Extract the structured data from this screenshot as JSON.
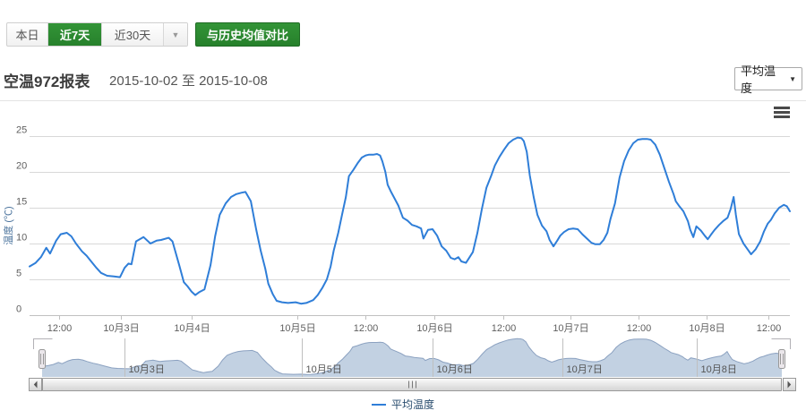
{
  "toolbar": {
    "range_buttons": [
      {
        "label": "本日",
        "selected": false
      },
      {
        "label": "近7天",
        "selected": true
      },
      {
        "label": "近30天",
        "selected": false
      }
    ],
    "compare_button_label": "与历史均值对比"
  },
  "header": {
    "title": "空温972报表",
    "date_range": "2015-10-02 至 2015-10-08",
    "metric_select_value": "平均温度"
  },
  "legend": {
    "items": [
      {
        "label": "平均温度",
        "color": "#2f7ed8"
      }
    ]
  },
  "colors": {
    "accent_green": "#2e8b2e",
    "series_blue": "#2f7ed8",
    "grid": "#d8d8d8",
    "axis_line": "#c0c0c0",
    "axis_label": "#606060",
    "y_title": "#4d759e",
    "navigator_fill": "rgba(69,114,167,0.33)",
    "navigator_line": "#8ba1c0",
    "navigator_grid": "#bfbfbf",
    "outline": "#b2b1b6",
    "legend_text": "#274b6d"
  },
  "chart_data": {
    "type": "line",
    "title": "",
    "ylabel": "温度 (℃)",
    "ylim": [
      0,
      26.5
    ],
    "yticks": [
      0,
      5,
      10,
      15,
      20,
      25
    ],
    "grid": "horizontal",
    "legend_position": "bottom-center",
    "xticks": [
      {
        "label": "12:00",
        "pos": 3.9
      },
      {
        "label": "10月3日",
        "pos": 12.0
      },
      {
        "label": "10月4日",
        "pos": 21.3
      },
      {
        "label": "10月5日",
        "pos": 35.2
      },
      {
        "label": "12:00",
        "pos": 44.2
      },
      {
        "label": "10月6日",
        "pos": 53.2
      },
      {
        "label": "12:00",
        "pos": 62.3
      },
      {
        "label": "10月7日",
        "pos": 71.1
      },
      {
        "label": "12:00",
        "pos": 80.1
      },
      {
        "label": "10月8日",
        "pos": 89.0
      },
      {
        "label": "12:00",
        "pos": 97.2
      }
    ],
    "navigator_ticks": [
      {
        "label": "10月3日",
        "pos": 11.1
      },
      {
        "label": "10月5日",
        "pos": 35.1
      },
      {
        "label": "10月6日",
        "pos": 52.8
      },
      {
        "label": "10月7日",
        "pos": 70.3
      },
      {
        "label": "10月8日",
        "pos": 88.5
      }
    ],
    "series": [
      {
        "name": "平均温度",
        "color": "#2f7ed8",
        "points": [
          [
            0,
            6.8
          ],
          [
            0.8,
            7.3
          ],
          [
            1.5,
            8.1
          ],
          [
            2.2,
            9.4
          ],
          [
            2.7,
            8.6
          ],
          [
            3.5,
            10.4
          ],
          [
            4.1,
            11.3
          ],
          [
            4.9,
            11.5
          ],
          [
            5.5,
            11
          ],
          [
            6.1,
            10
          ],
          [
            6.9,
            8.9
          ],
          [
            7.5,
            8.3
          ],
          [
            8.1,
            7.5
          ],
          [
            8.8,
            6.6
          ],
          [
            9.4,
            5.9
          ],
          [
            10.2,
            5.5
          ],
          [
            11.1,
            5.4
          ],
          [
            11.9,
            5.3
          ],
          [
            12.5,
            6.6
          ],
          [
            13,
            7.2
          ],
          [
            13.4,
            7.1
          ],
          [
            14,
            10.3
          ],
          [
            15,
            10.9
          ],
          [
            15.9,
            10
          ],
          [
            16.7,
            10.4
          ],
          [
            17.3,
            10.5
          ],
          [
            18.3,
            10.8
          ],
          [
            18.8,
            10.3
          ],
          [
            19.7,
            6.9
          ],
          [
            20.3,
            4.6
          ],
          [
            20.8,
            4
          ],
          [
            21.3,
            3.3
          ],
          [
            21.8,
            2.8
          ],
          [
            22.3,
            3.2
          ],
          [
            23,
            3.6
          ],
          [
            23.8,
            7
          ],
          [
            24.4,
            11
          ],
          [
            25,
            14
          ],
          [
            25.8,
            15.6
          ],
          [
            26.5,
            16.5
          ],
          [
            27.2,
            16.9
          ],
          [
            27.9,
            17.1
          ],
          [
            28.4,
            17.2
          ],
          [
            29.1,
            15.9
          ],
          [
            29.8,
            12
          ],
          [
            30.4,
            9
          ],
          [
            31,
            6.5
          ],
          [
            31.4,
            4.4
          ],
          [
            32,
            2.9
          ],
          [
            32.5,
            2
          ],
          [
            33.2,
            1.8
          ],
          [
            34,
            1.7
          ],
          [
            35,
            1.8
          ],
          [
            35.7,
            1.6
          ],
          [
            36.4,
            1.7
          ],
          [
            37.3,
            2.1
          ],
          [
            37.9,
            2.8
          ],
          [
            38.5,
            3.8
          ],
          [
            39.1,
            5
          ],
          [
            39.6,
            6.8
          ],
          [
            40,
            9
          ],
          [
            40.6,
            11.5
          ],
          [
            41.1,
            14
          ],
          [
            41.6,
            16.5
          ],
          [
            42,
            19.4
          ],
          [
            42.6,
            20.3
          ],
          [
            43.2,
            21.3
          ],
          [
            43.7,
            22
          ],
          [
            44.2,
            22.3
          ],
          [
            44.6,
            22.4
          ],
          [
            45.2,
            22.4
          ],
          [
            45.7,
            22.5
          ],
          [
            46.1,
            22.3
          ],
          [
            46.4,
            21.5
          ],
          [
            46.8,
            20
          ],
          [
            47.1,
            18.2
          ],
          [
            47.5,
            17.3
          ],
          [
            47.9,
            16.5
          ],
          [
            48.5,
            15.3
          ],
          [
            49.1,
            13.6
          ],
          [
            49.7,
            13.2
          ],
          [
            50.3,
            12.6
          ],
          [
            50.9,
            12.4
          ],
          [
            51.5,
            12.1
          ],
          [
            51.8,
            10.7
          ],
          [
            52.4,
            11.9
          ],
          [
            53,
            12
          ],
          [
            53.6,
            11.1
          ],
          [
            54.2,
            9.6
          ],
          [
            54.8,
            9
          ],
          [
            55.4,
            8
          ],
          [
            55.9,
            7.8
          ],
          [
            56.4,
            8.1
          ],
          [
            56.8,
            7.5
          ],
          [
            57.4,
            7.3
          ],
          [
            57.7,
            7.8
          ],
          [
            58.3,
            8.8
          ],
          [
            58.9,
            11.5
          ],
          [
            59.5,
            14.9
          ],
          [
            60.1,
            17.8
          ],
          [
            60.7,
            19.4
          ],
          [
            61.2,
            20.9
          ],
          [
            61.8,
            22.1
          ],
          [
            62.4,
            23.1
          ],
          [
            63,
            24
          ],
          [
            63.6,
            24.5
          ],
          [
            64.2,
            24.8
          ],
          [
            64.7,
            24.7
          ],
          [
            65,
            24.3
          ],
          [
            65.4,
            22.8
          ],
          [
            65.8,
            19.5
          ],
          [
            66.3,
            16.5
          ],
          [
            66.8,
            14
          ],
          [
            67.4,
            12.5
          ],
          [
            68,
            11.7
          ],
          [
            68.4,
            10.5
          ],
          [
            68.9,
            9.6
          ],
          [
            69.4,
            10.4
          ],
          [
            69.8,
            11.1
          ],
          [
            70.3,
            11.6
          ],
          [
            70.9,
            12
          ],
          [
            71.5,
            12.1
          ],
          [
            72.1,
            12
          ],
          [
            72.7,
            11.3
          ],
          [
            73.3,
            10.7
          ],
          [
            73.9,
            10.1
          ],
          [
            74.4,
            9.9
          ],
          [
            75,
            9.9
          ],
          [
            75.5,
            10.5
          ],
          [
            76,
            11.5
          ],
          [
            76.4,
            13.4
          ],
          [
            77,
            15.6
          ],
          [
            77.6,
            19.2
          ],
          [
            78.2,
            21.5
          ],
          [
            78.8,
            23
          ],
          [
            79.4,
            24
          ],
          [
            80,
            24.5
          ],
          [
            80.6,
            24.6
          ],
          [
            81.2,
            24.6
          ],
          [
            81.7,
            24.5
          ],
          [
            82.3,
            23.8
          ],
          [
            82.9,
            22.4
          ],
          [
            83.5,
            20.5
          ],
          [
            84.1,
            18.6
          ],
          [
            84.7,
            16.9
          ],
          [
            85,
            15.9
          ],
          [
            85.4,
            15.3
          ],
          [
            86,
            14.5
          ],
          [
            86.6,
            13.1
          ],
          [
            86.9,
            11.9
          ],
          [
            87.3,
            10.9
          ],
          [
            87.7,
            12.4
          ],
          [
            88.3,
            11.8
          ],
          [
            88.8,
            11.1
          ],
          [
            89.2,
            10.6
          ],
          [
            89.6,
            11.2
          ],
          [
            90.1,
            11.9
          ],
          [
            90.7,
            12.6
          ],
          [
            91.3,
            13.2
          ],
          [
            91.8,
            13.6
          ],
          [
            92.2,
            14.8
          ],
          [
            92.6,
            16.5
          ],
          [
            92.9,
            14
          ],
          [
            93.3,
            11.3
          ],
          [
            93.9,
            10
          ],
          [
            94.5,
            9.1
          ],
          [
            94.9,
            8.5
          ],
          [
            95.5,
            9.2
          ],
          [
            96.1,
            10.3
          ],
          [
            96.6,
            11.7
          ],
          [
            97.1,
            12.8
          ],
          [
            97.5,
            13.3
          ],
          [
            98,
            14.2
          ],
          [
            98.6,
            15
          ],
          [
            99.2,
            15.4
          ],
          [
            99.6,
            15.2
          ],
          [
            100,
            14.5
          ]
        ]
      }
    ]
  }
}
